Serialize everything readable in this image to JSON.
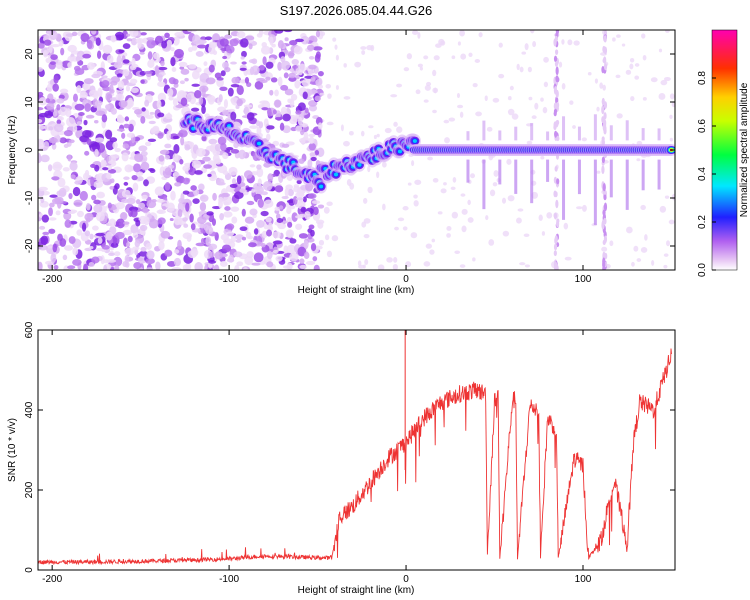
{
  "figure_title": "S197.2026.085.04.44.G26",
  "chart_data": [
    {
      "type": "heatmap",
      "title": "S197.2026.085.04.44.G26",
      "xlabel": "Height of straight line (km)",
      "ylabel": "Frequency (Hz)",
      "xlim": [
        -208,
        152
      ],
      "ylim": [
        -25,
        25
      ],
      "xticks": [
        -200,
        -100,
        0,
        100
      ],
      "yticks": [
        -20,
        -10,
        0,
        10,
        20
      ],
      "colorbar": {
        "label": "Normalized spectral amplitude",
        "range": [
          0,
          1
        ],
        "ticks": [
          0.0,
          0.2,
          0.4,
          0.6,
          0.8
        ],
        "tick_labels": [
          "0.0",
          "0.2",
          "0.4",
          "0.6",
          "0.8"
        ],
        "colormap": "rainbow (magenta-blue-cyan-green-yellow-red)"
      },
      "features": {
        "noise_region_x": [
          -208,
          -48
        ],
        "track_segments": [
          {
            "x": [
              -125,
              -100
            ],
            "freq": [
              6,
              4
            ]
          },
          {
            "x": [
              -100,
              -48
            ],
            "freq": [
              4,
              -7
            ]
          },
          {
            "x": [
              -48,
              5
            ],
            "freq": [
              -5,
              2
            ]
          },
          {
            "x": [
              5,
              150
            ],
            "freq": [
              0,
              0
            ]
          }
        ],
        "vertical_streaks_x": [
          85,
          112
        ]
      }
    },
    {
      "type": "line",
      "xlabel": "Height of straight line (km)",
      "ylabel": "SNR (10 * v/v)",
      "xlim": [
        -208,
        152
      ],
      "ylim": [
        0,
        600
      ],
      "xticks": [
        -200,
        -100,
        0,
        100
      ],
      "yticks": [
        0,
        200,
        400,
        600
      ],
      "series": [
        {
          "name": "SNR",
          "color": "#ee3333",
          "x": [
            -208,
            -180,
            -150,
            -120,
            -100,
            -80,
            -60,
            -42,
            -38,
            -30,
            -20,
            -10,
            0,
            10,
            20,
            30,
            40,
            45,
            46,
            50,
            52,
            53,
            60,
            62,
            63,
            70,
            75,
            76,
            80,
            85,
            86,
            95,
            100,
            103,
            110,
            115,
            118,
            125,
            128,
            132,
            140,
            145,
            150
          ],
          "values": [
            20,
            20,
            22,
            25,
            28,
            35,
            32,
            30,
            130,
            160,
            220,
            280,
            320,
            380,
            420,
            440,
            450,
            440,
            40,
            420,
            440,
            30,
            420,
            430,
            30,
            410,
            400,
            30,
            380,
            350,
            30,
            280,
            260,
            30,
            70,
            180,
            220,
            60,
            300,
            420,
            400,
            470,
            540
          ]
        }
      ]
    }
  ]
}
